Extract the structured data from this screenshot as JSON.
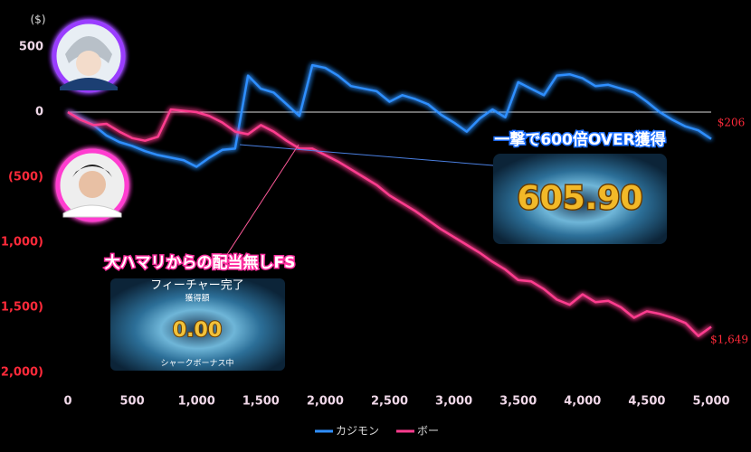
{
  "chart_data": {
    "type": "line",
    "y_unit": "($)",
    "x": [
      0,
      100,
      200,
      300,
      400,
      500,
      600,
      700,
      800,
      900,
      1000,
      1100,
      1200,
      1300,
      1400,
      1500,
      1600,
      1700,
      1800,
      1900,
      2000,
      2100,
      2200,
      2300,
      2400,
      2500,
      2600,
      2700,
      2800,
      2900,
      3000,
      3100,
      3200,
      3300,
      3400,
      3500,
      3600,
      3700,
      3800,
      3900,
      4000,
      4100,
      4200,
      4300,
      4400,
      4500,
      4600,
      4700,
      4800,
      4900,
      5000
    ],
    "series": [
      {
        "name": "カジモン",
        "color": "#2f8fff",
        "values": [
          0,
          -50,
          -100,
          -180,
          -230,
          -260,
          -300,
          -330,
          -350,
          -370,
          -420,
          -350,
          -290,
          -280,
          280,
          180,
          150,
          60,
          -30,
          360,
          340,
          280,
          200,
          180,
          160,
          80,
          130,
          100,
          60,
          -20,
          -80,
          -150,
          -50,
          20,
          -40,
          230,
          180,
          130,
          280,
          290,
          260,
          200,
          210,
          180,
          150,
          80,
          0,
          -60,
          -110,
          -140,
          -206
        ]
      },
      {
        "name": "ボー",
        "color": "#ff3d8f",
        "values": [
          0,
          -60,
          -100,
          -90,
          -150,
          -200,
          -220,
          -190,
          20,
          10,
          0,
          -30,
          -80,
          -150,
          -170,
          -100,
          -150,
          -220,
          -280,
          -280,
          -330,
          -380,
          -440,
          -500,
          -560,
          -640,
          -700,
          -760,
          -830,
          -900,
          -960,
          -1020,
          -1080,
          -1150,
          -1210,
          -1290,
          -1300,
          -1360,
          -1440,
          -1480,
          -1400,
          -1460,
          -1450,
          -1500,
          -1580,
          -1530,
          -1550,
          -1580,
          -1620,
          -1720,
          -1649
        ]
      }
    ],
    "end_labels": [
      "$206",
      "$1,649"
    ],
    "xlim": [
      0,
      5000
    ],
    "xticks": [
      0,
      500,
      {
        "value": 1000,
        "label": "1,000"
      },
      {
        "value": 1500,
        "label": "1,500"
      },
      {
        "value": 2000,
        "label": "2,000"
      },
      {
        "value": 2500,
        "label": "2,500"
      },
      {
        "value": 3000,
        "label": "3,000"
      },
      {
        "value": 3500,
        "label": "3,500"
      },
      {
        "value": 4000,
        "label": "4,000"
      },
      {
        "value": 4500,
        "label": "4,500"
      },
      {
        "value": 5000,
        "label": "5,000"
      }
    ],
    "ylim": [
      -2000,
      500
    ],
    "yticks": [
      500,
      0,
      {
        "value": -500,
        "label": "(500)"
      },
      {
        "value": -1000,
        "label": "(1,000)"
      },
      {
        "value": -1500,
        "label": "(1,500)"
      },
      {
        "value": -2000,
        "label": "(2,000)"
      }
    ],
    "zero_line": true,
    "legend": "bottom",
    "callouts": {
      "big_win_title": "一撃で600倍OVER獲得",
      "big_win_amount": "605.90",
      "no_pay_title": "大ハマリからの配当無しFS",
      "no_pay_header": "フィーチャー完了",
      "no_pay_sub": "獲得額",
      "no_pay_amount": "0.00",
      "no_pay_footer": "シャークボーナス中"
    }
  }
}
